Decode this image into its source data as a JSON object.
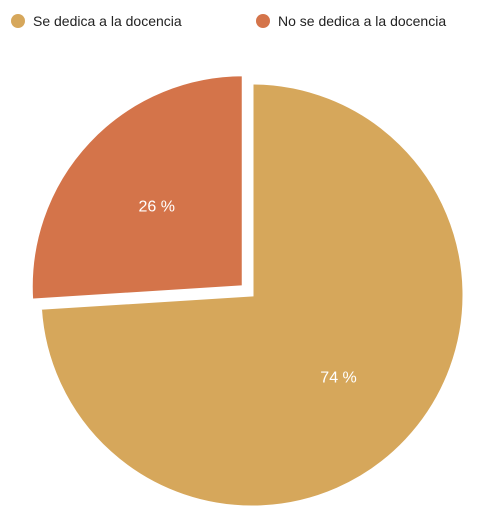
{
  "chart_data": {
    "type": "pie",
    "title": "",
    "legend_position": "top",
    "categories": [
      "Se dedica a la docencia",
      "No se dedica a la docencia"
    ],
    "values": [
      74,
      26
    ],
    "labels": [
      "74 %",
      "26 %"
    ],
    "colors": [
      "#D6A75B",
      "#D4744A"
    ],
    "exploded": [
      false,
      true
    ]
  }
}
